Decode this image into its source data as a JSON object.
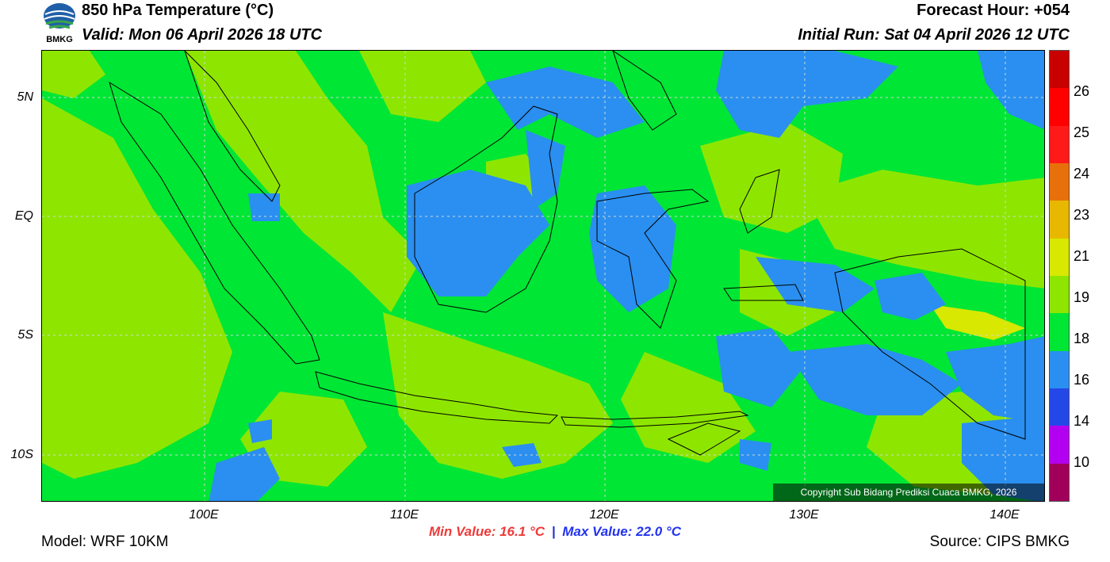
{
  "header": {
    "title": "850 hPa Temperature (°C)",
    "valid": "Valid: Mon 06 April 2026 18 UTC",
    "forecast_hour": "Forecast Hour: +054",
    "initial_run": "Initial Run: Sat 04 April 2026 12 UTC",
    "logo_text": "BMKG"
  },
  "map": {
    "lat_labels": [
      "5N",
      "EQ",
      "5S",
      "10S"
    ],
    "lon_labels": [
      "100E",
      "110E",
      "120E",
      "130E",
      "140E"
    ],
    "copyright": "Copyright Sub Bidang Prediksi Cuaca BMKG, 2026"
  },
  "colorbar": {
    "labels": [
      "26",
      "25",
      "24",
      "23",
      "21",
      "19",
      "18",
      "16",
      "14",
      "10"
    ],
    "colors": [
      "#c80000",
      "#ff0000",
      "#ff1a1a",
      "#e8700a",
      "#e8b800",
      "#d8e800",
      "#8ee600",
      "#00e635",
      "#2a8ff0",
      "#2447e8",
      "#b400f0",
      "#a0005a"
    ]
  },
  "footer": {
    "model": "Model: WRF 10KM",
    "min_value": "Min Value: 16.1 °C",
    "separator": "|",
    "max_value": "Max Value: 22.0 °C",
    "source": "Source: CIPS BMKG"
  }
}
